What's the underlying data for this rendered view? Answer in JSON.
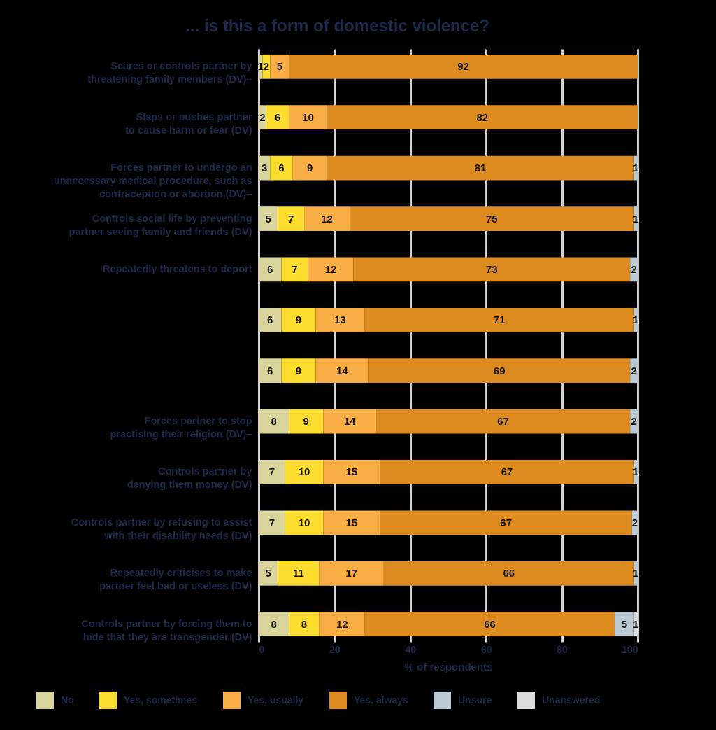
{
  "chart_data": {
    "type": "bar",
    "orientation": "horizontal",
    "stacked": true,
    "title": "... is this a form of domestic violence?",
    "xlabel": "% of respondents",
    "categories": [
      "Scares or controls partner by threatening family members (DV)–",
      "Slaps or pushes partner to cause harm or fear (DV)",
      "Forces partner to undergo an unnecessary medical procedure, such as contraception or abortion (DV)–",
      "Controls social life by preventing partner seeing family and friends (DV)",
      "Repeatedly threatens to deport",
      null,
      null,
      "Forces partner to stop practising their religion (DV)–",
      "Controls partner by denying them money (DV)",
      "Controls partner by refusing to assist with their disability needs (DV)",
      "Repeatedly criticises to make partner feel bad or useless (DV)",
      "Controls partner by forcing them to hide that they are transgender (DV)"
    ],
    "series": [
      {
        "name": "No",
        "color": "#d9d49b",
        "values": [
          1,
          2,
          3,
          5,
          6,
          6,
          6,
          8,
          7,
          7,
          5,
          8
        ],
        "value_labels": [
          "1",
          "2",
          "3",
          "5",
          "6",
          "6",
          "6",
          "8",
          "7",
          "7",
          "5",
          "8"
        ]
      },
      {
        "name": "Yes, sometimes",
        "color": "#fcdc2c",
        "values": [
          2,
          6,
          6,
          7,
          7,
          9,
          9,
          9,
          10,
          10,
          11,
          8
        ],
        "value_labels": [
          "2",
          "6",
          "6",
          "7",
          "7",
          "9",
          "9",
          "9",
          "10",
          "10",
          "11",
          "8"
        ]
      },
      {
        "name": "Yes, usually",
        "color": "#f8ad45",
        "values": [
          5,
          10,
          9,
          12,
          12,
          13,
          14,
          14,
          15,
          15,
          17,
          12
        ],
        "value_labels": [
          "5",
          "10",
          "9",
          "12",
          "12",
          "13",
          "14",
          "14",
          "15",
          "15",
          "17",
          "12"
        ]
      },
      {
        "name": "Yes, always",
        "color": "#dd8b1e",
        "values": [
          92,
          82,
          81,
          75,
          73,
          71,
          69,
          67,
          67,
          66.5,
          66,
          66
        ],
        "value_labels": [
          "92",
          "82",
          "81",
          "75",
          "73",
          "71",
          "69",
          "67",
          "67",
          "67",
          "66",
          "66"
        ]
      },
      {
        "name": "Unsure",
        "color": "#bccad6",
        "values": [
          null,
          null,
          1,
          1,
          2,
          1,
          2,
          2,
          1,
          1.5,
          1,
          5
        ],
        "value_labels": [
          null,
          null,
          "1",
          "1",
          "2",
          "1",
          "2",
          "2",
          "1",
          "2",
          "1",
          "5"
        ]
      },
      {
        "name": "Unanswered",
        "color": "#dddddd",
        "values": [
          null,
          null,
          null,
          null,
          null,
          null,
          null,
          null,
          null,
          null,
          null,
          1
        ],
        "value_labels": [
          null,
          null,
          null,
          null,
          null,
          null,
          null,
          null,
          null,
          null,
          null,
          "1"
        ]
      }
    ],
    "xlim": [
      0,
      100
    ],
    "xticks": [
      0,
      20,
      40,
      60,
      80,
      100
    ],
    "grid": "x",
    "legend": "bottom"
  }
}
